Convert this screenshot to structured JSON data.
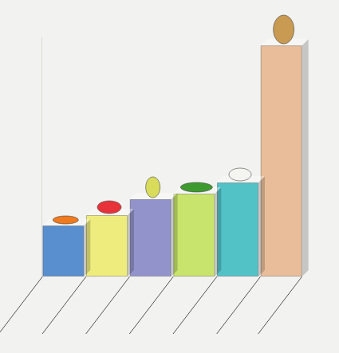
{
  "chart_data": {
    "type": "bar",
    "categories": [
      null,
      null,
      null,
      null,
      null,
      null
    ],
    "values": [
      64,
      77,
      97,
      104,
      118,
      290
    ],
    "colors": [
      "#5a8fcf",
      "#eeec7c",
      "#9393cc",
      "#c9e46c",
      "#52c2c6",
      "#e9bd99"
    ],
    "ylim": [
      0,
      300
    ],
    "yticks": [
      0,
      300
    ],
    "grid": false,
    "tick_labels": false
  }
}
